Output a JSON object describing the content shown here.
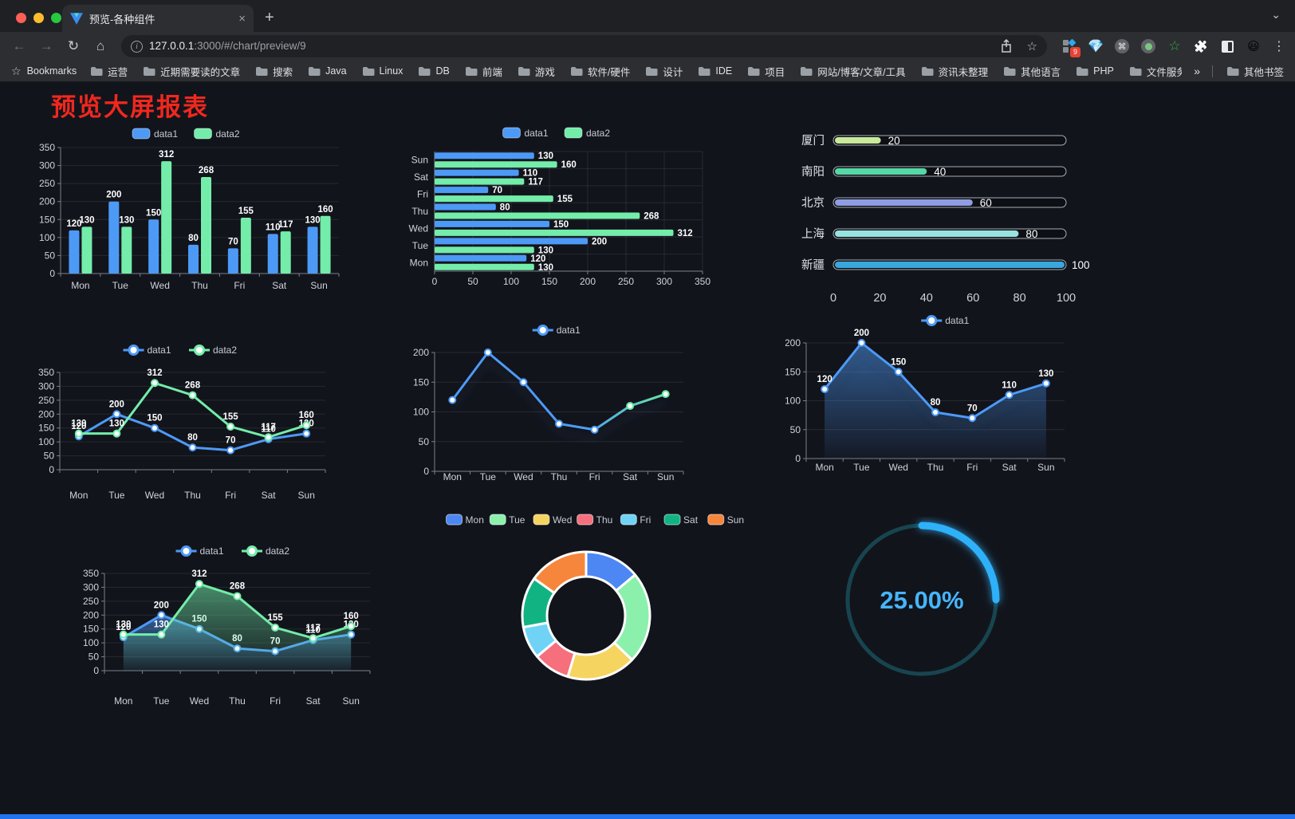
{
  "browser": {
    "tab": {
      "title": "预览-各种组件",
      "close_icon": "×",
      "new_tab_icon": "+",
      "strip_chevron": "⌄"
    },
    "icons": {
      "back": "←",
      "forward": "→",
      "reload": "↻",
      "home": "⌂",
      "info": "i",
      "star": "☆",
      "command": "⌘",
      "green_star": "☆",
      "puzzle": "🧩",
      "emoji": "😃",
      "kebab": "⋮"
    },
    "nav": {
      "url_host": "127.0.0.1",
      "url_rest": ":3000/#/chart/preview/9"
    },
    "extensions": {
      "badge": "9"
    },
    "bookmarks": {
      "label": "Bookmarks",
      "items": [
        "运营",
        "近期需要读的文章",
        "搜索",
        "Java",
        "Linux",
        "DB",
        "前端",
        "游戏",
        "软件/硬件",
        "设计",
        "IDE",
        "项目",
        "网站/博客/文章/工具",
        "资讯未整理",
        "其他语言",
        "PHP",
        "文件服务器"
      ],
      "overflow": "»",
      "other": "其他书签"
    }
  },
  "page": {
    "title": "预览大屏报表",
    "title_color": "#f0281e",
    "background": "#12141c",
    "accent_bar_color": "#2173ef"
  },
  "chart_data": [
    {
      "id": "bar-vertical",
      "type": "bar",
      "legend": [
        "data1",
        "data2"
      ],
      "legend_position": "top",
      "categories": [
        "Mon",
        "Tue",
        "Wed",
        "Thu",
        "Fri",
        "Sat",
        "Sun"
      ],
      "series": [
        {
          "name": "data1",
          "color": "#4d9af6",
          "values": [
            120,
            200,
            150,
            80,
            70,
            110,
            130
          ]
        },
        {
          "name": "data2",
          "color": "#73eda9",
          "values": [
            130,
            130,
            312,
            268,
            155,
            117,
            160
          ]
        }
      ],
      "ylim": [
        0,
        350
      ],
      "ystep": 50,
      "grid": true,
      "value_labels": true
    },
    {
      "id": "bar-horizontal",
      "type": "bar",
      "orientation": "horizontal",
      "legend": [
        "data1",
        "data2"
      ],
      "legend_position": "top",
      "categories_top_to_bottom": [
        "Sun",
        "Sat",
        "Fri",
        "Thu",
        "Wed",
        "Tue",
        "Mon"
      ],
      "series": [
        {
          "name": "data1",
          "color": "#4d9af6",
          "values": [
            130,
            110,
            70,
            80,
            150,
            200,
            120
          ]
        },
        {
          "name": "data2",
          "color": "#73eda9",
          "values": [
            160,
            117,
            155,
            268,
            312,
            130,
            130
          ]
        }
      ],
      "xlim": [
        0,
        350
      ],
      "xstep": 50,
      "grid": true,
      "value_labels": true
    },
    {
      "id": "progress-bars",
      "type": "bar",
      "subtype": "progress",
      "rows": [
        {
          "label": "厦门",
          "value": 20,
          "color": "#c9e99b"
        },
        {
          "label": "南阳",
          "value": 40,
          "color": "#55d7a6"
        },
        {
          "label": "北京",
          "value": 60,
          "color": "#8f9de2"
        },
        {
          "label": "上海",
          "value": 80,
          "color": "#97e3df"
        },
        {
          "label": "新疆",
          "value": 100,
          "color": "#38a7dd"
        }
      ],
      "xticks": [
        0,
        20,
        40,
        60,
        80,
        100
      ],
      "max": 100,
      "value_labels": true
    },
    {
      "id": "line-two-series",
      "type": "line",
      "legend": [
        "data1",
        "data2"
      ],
      "legend_position": "top",
      "categories": [
        "Mon",
        "Tue",
        "Wed",
        "Thu",
        "Fri",
        "Sat",
        "Sun"
      ],
      "series": [
        {
          "name": "data1",
          "color": "#4d9af6",
          "values": [
            120,
            200,
            150,
            80,
            70,
            110,
            130
          ]
        },
        {
          "name": "data2",
          "color": "#73eda9",
          "values": [
            130,
            130,
            312,
            268,
            155,
            117,
            160
          ]
        }
      ],
      "ylim": [
        0,
        350
      ],
      "ystep": 50,
      "grid": true,
      "value_labels": true
    },
    {
      "id": "line-gradient",
      "type": "line",
      "legend": [
        "data1"
      ],
      "legend_position": "top",
      "categories": [
        "Mon",
        "Tue",
        "Wed",
        "Thu",
        "Fri",
        "Sat",
        "Sun"
      ],
      "series": [
        {
          "name": "data1",
          "color": "#4d9af6",
          "gradient_to": "#66e6a4",
          "values": [
            120,
            200,
            150,
            80,
            70,
            110,
            130
          ]
        }
      ],
      "ylim": [
        0,
        200
      ],
      "ystep": 50,
      "grid": true,
      "value_labels": false
    },
    {
      "id": "area-single",
      "type": "area",
      "legend": [
        "data1"
      ],
      "legend_position": "top",
      "categories": [
        "Mon",
        "Tue",
        "Wed",
        "Thu",
        "Fri",
        "Sat",
        "Sun"
      ],
      "series": [
        {
          "name": "data1",
          "color": "#4d9af6",
          "values": [
            120,
            200,
            150,
            80,
            70,
            110,
            130
          ]
        }
      ],
      "ylim": [
        0,
        200
      ],
      "ystep": 50,
      "grid": true,
      "value_labels": true
    },
    {
      "id": "area-two-series",
      "type": "area",
      "legend": [
        "data1",
        "data2"
      ],
      "legend_position": "top",
      "categories": [
        "Mon",
        "Tue",
        "Wed",
        "Thu",
        "Fri",
        "Sat",
        "Sun"
      ],
      "series": [
        {
          "name": "data1",
          "color": "#4d9af6",
          "values": [
            120,
            200,
            150,
            80,
            70,
            110,
            130
          ]
        },
        {
          "name": "data2",
          "color": "#73eda9",
          "values": [
            130,
            130,
            312,
            268,
            155,
            117,
            160
          ]
        }
      ],
      "ylim": [
        0,
        350
      ],
      "ystep": 50,
      "grid": true,
      "value_labels": true
    },
    {
      "id": "donut",
      "type": "pie",
      "inner_radius_ratio": 0.61,
      "legend_position": "top",
      "categories": [
        "Mon",
        "Tue",
        "Wed",
        "Thu",
        "Fri",
        "Sat",
        "Sun"
      ],
      "values": [
        120,
        200,
        150,
        80,
        70,
        110,
        130
      ],
      "colors": [
        "#4c87f3",
        "#8cf0ad",
        "#f6d460",
        "#f66f7d",
        "#70d3f5",
        "#11b383",
        "#f6863c"
      ]
    },
    {
      "id": "gauge",
      "type": "gauge",
      "value": 25,
      "label": "25.00%",
      "color": "#2db1f8",
      "track_color": "#17454f",
      "text_color": "#46b5fa"
    }
  ]
}
